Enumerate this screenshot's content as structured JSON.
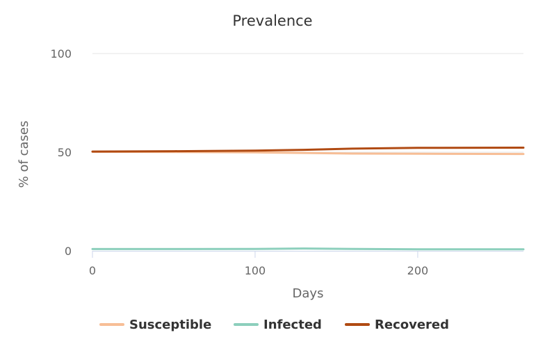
{
  "chart_data": {
    "type": "line",
    "title": "Prevalence",
    "xlabel": "Days",
    "ylabel": "% of cases",
    "xlim": [
      0,
      265
    ],
    "ylim": [
      0,
      100
    ],
    "xticks": [
      0,
      100,
      200
    ],
    "yticks": [
      0,
      50,
      100
    ],
    "grid": "horizontal",
    "legend_position": "bottom",
    "series": [
      {
        "name": "Susceptible",
        "color": "#f7be96",
        "x": [
          0,
          50,
          100,
          130,
          160,
          200,
          265
        ],
        "y": [
          50.2,
          50.1,
          49.9,
          49.6,
          49.3,
          49.2,
          49.1
        ]
      },
      {
        "name": "Infected",
        "color": "#8ccfbc",
        "x": [
          0,
          50,
          100,
          130,
          160,
          200,
          265
        ],
        "y": [
          0.9,
          0.9,
          1.0,
          1.2,
          1.0,
          0.8,
          0.8
        ]
      },
      {
        "name": "Recovered",
        "color": "#b04a12",
        "x": [
          0,
          50,
          100,
          130,
          160,
          200,
          265
        ],
        "y": [
          50.3,
          50.5,
          50.8,
          51.2,
          51.8,
          52.2,
          52.3
        ]
      }
    ]
  }
}
